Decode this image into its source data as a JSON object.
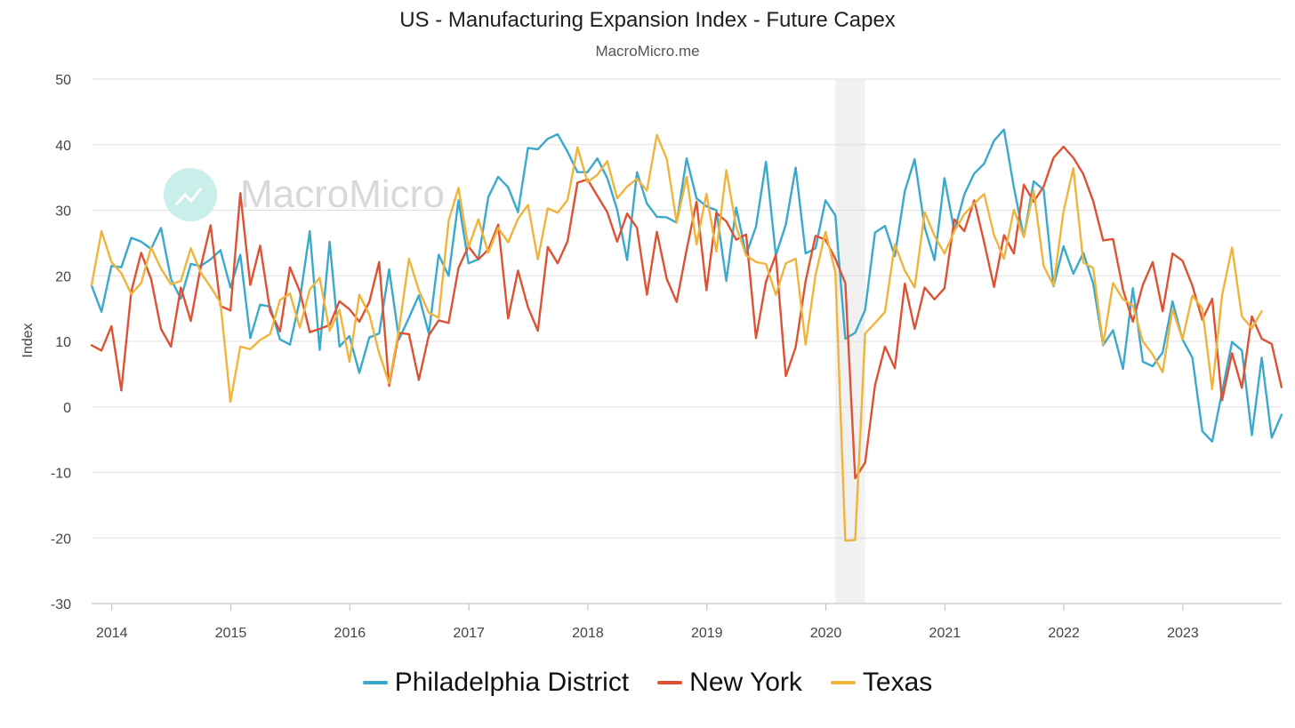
{
  "chart_data": {
    "type": "line",
    "title": "US - Manufacturing Expansion Index - Future Capex",
    "subtitle": "MacroMicro.me",
    "watermark": "MacroMicro",
    "ylabel": "Index",
    "xlabel": "",
    "ylim": [
      -30,
      50
    ],
    "yticks": [
      50,
      40,
      30,
      20,
      10,
      0,
      -10,
      -20,
      -30
    ],
    "xlim": [
      2013.83,
      2023.83
    ],
    "xticks": [
      "2014",
      "2015",
      "2016",
      "2017",
      "2018",
      "2019",
      "2020",
      "2021",
      "2022",
      "2023"
    ],
    "recession_band": [
      2020.08,
      2020.33
    ],
    "start": 2013.83,
    "step": 0.08333,
    "series": [
      {
        "name": "Philadelphia District",
        "color": "#3aa9cc",
        "values": [
          18.5,
          14.5,
          21.5,
          21.3,
          25.8,
          25.2,
          24.1,
          27.3,
          19.5,
          16.5,
          21.8,
          21.5,
          22.5,
          23.9,
          18.2,
          23.2,
          10.5,
          15.6,
          15.3,
          10.3,
          9.5,
          16.3,
          26.8,
          8.7,
          25.2,
          9.2,
          10.8,
          5.2,
          10.6,
          11.2,
          21.0,
          10.3,
          13.6,
          17.0,
          11.2,
          23.2,
          20.0,
          31.5,
          21.9,
          22.5,
          32.0,
          35.1,
          33.5,
          29.7,
          39.5,
          39.3,
          40.9,
          41.6,
          38.9,
          35.8,
          35.8,
          37.9,
          34.9,
          30.1,
          22.4,
          35.8,
          31.0,
          29.0,
          28.9,
          28.1,
          37.9,
          31.8,
          30.6,
          30.0,
          19.2,
          30.4,
          23.2,
          27.5,
          37.4,
          23.1,
          27.8,
          36.5,
          23.4,
          24.2,
          31.5,
          29.2,
          10.4,
          11.3,
          14.8,
          26.6,
          27.6,
          23.0,
          32.9,
          37.8,
          27.4,
          22.4,
          34.9,
          26.8,
          32.4,
          35.6,
          37.1,
          40.6,
          42.3,
          33.5,
          25.9,
          34.4,
          33.1,
          18.4,
          24.5,
          20.3,
          23.5,
          18.8,
          9.4,
          11.7,
          5.8,
          18.1,
          6.9,
          6.2,
          8.3,
          16.1,
          10.3,
          7.5,
          -3.7,
          -5.3,
          2.3,
          9.9,
          8.6,
          -4.3,
          7.5,
          -4.7,
          -1.2
        ]
      },
      {
        "name": "New York",
        "color": "#de5234",
        "values": [
          9.4,
          8.6,
          12.3,
          2.5,
          17.6,
          23.5,
          19.5,
          11.9,
          9.2,
          18.2,
          13.1,
          21.3,
          27.7,
          15.4,
          14.7,
          32.6,
          18.6,
          24.6,
          14.6,
          11.5,
          21.3,
          17.6,
          11.4,
          11.9,
          12.5,
          16.1,
          14.9,
          13.0,
          16.0,
          22.1,
          3.2,
          11.3,
          11.1,
          4.1,
          10.9,
          13.2,
          12.8,
          21.2,
          24.5,
          22.5,
          24.0,
          27.8,
          13.5,
          20.8,
          15.2,
          11.6,
          24.4,
          21.9,
          25.3,
          34.2,
          34.7,
          32.2,
          29.7,
          25.2,
          29.5,
          27.3,
          17.1,
          26.7,
          19.5,
          16.0,
          24.0,
          31.3,
          17.8,
          29.6,
          28.3,
          25.5,
          26.3,
          10.5,
          19.1,
          23.2,
          4.7,
          9.1,
          19.2,
          26.1,
          25.5,
          22.6,
          18.9,
          -10.9,
          -8.5,
          3.3,
          9.2,
          5.9,
          18.8,
          11.9,
          18.2,
          16.4,
          18.1,
          28.6,
          26.8,
          31.5,
          25.1,
          18.3,
          26.2,
          23.4,
          33.9,
          31.3,
          33.6,
          38.0,
          39.7,
          38.0,
          35.5,
          31.4,
          25.4,
          25.6,
          17.9,
          13.0,
          18.6,
          22.1,
          14.6,
          23.4,
          22.3,
          18.5,
          13.3,
          16.5,
          1.0,
          8.2,
          2.9,
          13.8,
          10.4,
          9.6,
          3.0
        ]
      },
      {
        "name": "Texas",
        "color": "#f0b43c",
        "values": [
          18.6,
          26.8,
          22.1,
          20.4,
          17.2,
          18.9,
          24.3,
          21.1,
          18.7,
          19.2,
          24.2,
          20.5,
          18.3,
          15.9,
          0.8,
          9.2,
          8.8,
          10.2,
          11.1,
          16.3,
          17.3,
          12.1,
          17.9,
          19.7,
          11.6,
          14.8,
          6.9,
          17.1,
          14.1,
          8.2,
          3.6,
          11.8,
          22.6,
          17.8,
          14.4,
          13.6,
          28.4,
          33.4,
          24.3,
          28.6,
          23.5,
          27.3,
          25.1,
          28.7,
          30.8,
          22.5,
          30.3,
          29.6,
          31.6,
          39.6,
          34.3,
          35.4,
          37.5,
          31.8,
          33.6,
          34.8,
          33.0,
          41.5,
          37.8,
          28.1,
          35.1,
          24.8,
          32.5,
          23.7,
          36.1,
          27.5,
          23.1,
          22.1,
          21.8,
          17.1,
          21.9,
          22.6,
          9.5,
          20.1,
          26.7,
          20.6,
          -20.4,
          -20.3,
          11.2,
          12.8,
          14.5,
          24.8,
          20.8,
          18.2,
          29.7,
          26.1,
          23.4,
          26.8,
          29.4,
          31.0,
          32.5,
          26.2,
          22.6,
          30.1,
          25.9,
          33.0,
          21.5,
          18.5,
          29.8,
          36.4,
          22.0,
          21.2,
          9.5,
          18.9,
          16.4,
          15.5,
          10.0,
          8.0,
          5.3,
          14.9,
          10.3,
          17.0,
          15.0,
          2.7,
          17.0,
          24.3,
          13.8,
          12.0,
          14.6
        ]
      }
    ]
  }
}
